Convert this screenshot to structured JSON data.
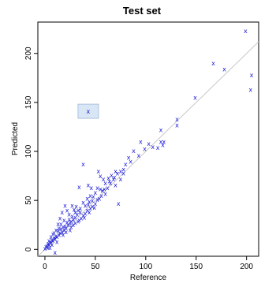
{
  "chart_data": {
    "type": "scatter",
    "title": "Test set",
    "xlabel": "Reference",
    "ylabel": "Predicted",
    "xlim": [
      -7,
      212
    ],
    "ylim": [
      -7,
      232
    ],
    "x_ticks": [
      "0",
      "50",
      "100",
      "150",
      "200"
    ],
    "x_tick_values": [
      0,
      50,
      100,
      150,
      200
    ],
    "y_ticks": [
      "0",
      "50",
      "100",
      "150",
      "200"
    ],
    "y_tick_values": [
      0,
      50,
      100,
      150,
      200
    ],
    "grid": false,
    "identity_line": true,
    "marker": "x",
    "point_color": "#1a1ad6",
    "line_color": "#c8c8c8",
    "highlighted_point": {
      "x": 43,
      "y": 141
    },
    "highlight_color": "#d9e6f5",
    "points": [
      {
        "x": 199,
        "y": 223
      },
      {
        "x": 167,
        "y": 190
      },
      {
        "x": 178,
        "y": 184
      },
      {
        "x": 205,
        "y": 178
      },
      {
        "x": 204,
        "y": 163
      },
      {
        "x": 149,
        "y": 155
      },
      {
        "x": 43,
        "y": 141
      },
      {
        "x": 131,
        "y": 133
      },
      {
        "x": 131,
        "y": 127
      },
      {
        "x": 115,
        "y": 122
      },
      {
        "x": 103,
        "y": 108
      },
      {
        "x": 115,
        "y": 110
      },
      {
        "x": 117,
        "y": 107
      },
      {
        "x": 112,
        "y": 104
      },
      {
        "x": 95,
        "y": 110
      },
      {
        "x": 88,
        "y": 101
      },
      {
        "x": 83,
        "y": 94
      },
      {
        "x": 93,
        "y": 96
      },
      {
        "x": 85,
        "y": 90
      },
      {
        "x": 80,
        "y": 87
      },
      {
        "x": 75,
        "y": 80
      },
      {
        "x": 78,
        "y": 82
      },
      {
        "x": 72,
        "y": 78
      },
      {
        "x": 68,
        "y": 72
      },
      {
        "x": 66,
        "y": 76
      },
      {
        "x": 70,
        "y": 80
      },
      {
        "x": 63,
        "y": 73
      },
      {
        "x": 60,
        "y": 68
      },
      {
        "x": 58,
        "y": 72
      },
      {
        "x": 55,
        "y": 75
      },
      {
        "x": 55,
        "y": 62
      },
      {
        "x": 52,
        "y": 63
      },
      {
        "x": 50,
        "y": 58
      },
      {
        "x": 48,
        "y": 54
      },
      {
        "x": 47,
        "y": 50
      },
      {
        "x": 45,
        "y": 55
      },
      {
        "x": 44,
        "y": 49
      },
      {
        "x": 43,
        "y": 46
      },
      {
        "x": 42,
        "y": 52
      },
      {
        "x": 40,
        "y": 45
      },
      {
        "x": 38,
        "y": 48
      },
      {
        "x": 35,
        "y": 42
      },
      {
        "x": 35,
        "y": 38
      },
      {
        "x": 33,
        "y": 40
      },
      {
        "x": 32,
        "y": 36
      },
      {
        "x": 30,
        "y": 38
      },
      {
        "x": 30,
        "y": 33
      },
      {
        "x": 28,
        "y": 31
      },
      {
        "x": 27,
        "y": 34
      },
      {
        "x": 26,
        "y": 29
      },
      {
        "x": 25,
        "y": 27
      },
      {
        "x": 24,
        "y": 31
      },
      {
        "x": 23,
        "y": 25
      },
      {
        "x": 22,
        "y": 28
      },
      {
        "x": 21,
        "y": 22
      },
      {
        "x": 20,
        "y": 24
      },
      {
        "x": 19,
        "y": 20
      },
      {
        "x": 18,
        "y": 23
      },
      {
        "x": 17,
        "y": 18
      },
      {
        "x": 16,
        "y": 21
      },
      {
        "x": 15,
        "y": 17
      },
      {
        "x": 14,
        "y": 15
      },
      {
        "x": 13,
        "y": 19
      },
      {
        "x": 12,
        "y": 13
      },
      {
        "x": 11,
        "y": 14
      },
      {
        "x": 10,
        "y": 11
      },
      {
        "x": 9,
        "y": 12
      },
      {
        "x": 8,
        "y": 9
      },
      {
        "x": 7,
        "y": 10
      },
      {
        "x": 6,
        "y": 7
      },
      {
        "x": 5,
        "y": 8
      },
      {
        "x": 4,
        "y": 5
      },
      {
        "x": 3,
        "y": 6
      },
      {
        "x": 2,
        "y": 4
      },
      {
        "x": 1,
        "y": 3
      },
      {
        "x": 0,
        "y": 1
      },
      {
        "x": 10,
        "y": -3
      },
      {
        "x": 5,
        "y": 2
      },
      {
        "x": 12,
        "y": 8
      },
      {
        "x": 18,
        "y": 15
      },
      {
        "x": 25,
        "y": 20
      },
      {
        "x": 28,
        "y": 25
      },
      {
        "x": 33,
        "y": 29
      },
      {
        "x": 38,
        "y": 35
      },
      {
        "x": 42,
        "y": 40
      },
      {
        "x": 47,
        "y": 44
      },
      {
        "x": 52,
        "y": 51
      },
      {
        "x": 57,
        "y": 60
      },
      {
        "x": 62,
        "y": 63
      },
      {
        "x": 65,
        "y": 68
      },
      {
        "x": 53,
        "y": 80
      },
      {
        "x": 46,
        "y": 63
      },
      {
        "x": 43,
        "y": 66
      },
      {
        "x": 34,
        "y": 64
      },
      {
        "x": 20,
        "y": 45
      },
      {
        "x": 17,
        "y": 38
      },
      {
        "x": 22,
        "y": 40
      },
      {
        "x": 15,
        "y": 32
      },
      {
        "x": 13,
        "y": 26
      },
      {
        "x": 11,
        "y": 20
      },
      {
        "x": 8,
        "y": 16
      },
      {
        "x": 6,
        "y": 13
      },
      {
        "x": 4,
        "y": 9
      },
      {
        "x": 30,
        "y": 27
      },
      {
        "x": 36,
        "y": 32
      },
      {
        "x": 40,
        "y": 37
      },
      {
        "x": 45,
        "y": 42
      },
      {
        "x": 50,
        "y": 47
      },
      {
        "x": 60,
        "y": 57
      },
      {
        "x": 70,
        "y": 66
      },
      {
        "x": 75,
        "y": 72
      },
      {
        "x": 73,
        "y": 47
      },
      {
        "x": 56,
        "y": 55
      },
      {
        "x": 38,
        "y": 87
      },
      {
        "x": 27,
        "y": 45
      },
      {
        "x": 29,
        "y": 41
      },
      {
        "x": 31,
        "y": 44
      },
      {
        "x": 24,
        "y": 36
      },
      {
        "x": 19,
        "y": 30
      },
      {
        "x": 16,
        "y": 26
      },
      {
        "x": 14,
        "y": 22
      },
      {
        "x": 9,
        "y": 17
      },
      {
        "x": 3,
        "y": 2
      },
      {
        "x": 7,
        "y": 5
      },
      {
        "x": 21,
        "y": 18
      },
      {
        "x": 26,
        "y": 23
      },
      {
        "x": 34,
        "y": 30
      },
      {
        "x": 39,
        "y": 33
      },
      {
        "x": 44,
        "y": 38
      },
      {
        "x": 49,
        "y": 43
      },
      {
        "x": 54,
        "y": 52
      },
      {
        "x": 59,
        "y": 62
      },
      {
        "x": 64,
        "y": 70
      },
      {
        "x": 69,
        "y": 74
      },
      {
        "x": 78,
        "y": 78
      },
      {
        "x": 99,
        "y": 103
      },
      {
        "x": 107,
        "y": 105
      },
      {
        "x": 118,
        "y": 110
      }
    ]
  }
}
